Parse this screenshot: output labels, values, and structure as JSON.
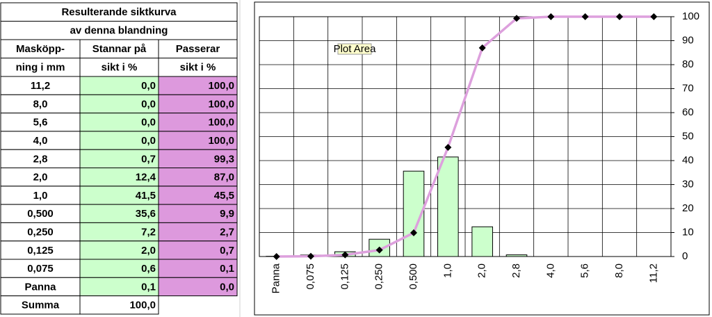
{
  "table": {
    "title": [
      "Resulterande siktkurva",
      "av denna blandning"
    ],
    "header": [
      [
        "Masköpp-",
        "Stannar på",
        "Passerar"
      ],
      [
        "ning i mm",
        "sikt i %",
        "sikt i %"
      ]
    ],
    "rows": [
      [
        "11,2",
        "0,0",
        "100,0"
      ],
      [
        "8,0",
        "0,0",
        "100,0"
      ],
      [
        "5,6",
        "0,0",
        "100,0"
      ],
      [
        "4,0",
        "0,0",
        "100,0"
      ],
      [
        "2,8",
        "0,7",
        "99,3"
      ],
      [
        "2,0",
        "12,4",
        "87,0"
      ],
      [
        "1,0",
        "41,5",
        "45,5"
      ],
      [
        "0,500",
        "35,6",
        "9,9"
      ],
      [
        "0,250",
        "7,2",
        "2,7"
      ],
      [
        "0,125",
        "2,0",
        "0,7"
      ],
      [
        "0,075",
        "0,6",
        "0,1"
      ],
      [
        "Panna",
        "0,1",
        "0,0"
      ]
    ],
    "total": [
      "Summa",
      "100,0"
    ]
  },
  "chart_data": {
    "type": "bar",
    "tooltip": "Plot Area",
    "categories": [
      "Panna",
      "0,075",
      "0,125",
      "0,250",
      "0,500",
      "1,0",
      "2,0",
      "2,8",
      "4,0",
      "5,6",
      "8,0",
      "11,2"
    ],
    "series": [
      {
        "type": "bar",
        "color": "#ccffcc",
        "values": [
          0.1,
          0.6,
          2.0,
          7.2,
          35.6,
          41.5,
          12.4,
          0.7,
          0,
          0,
          0,
          0
        ]
      },
      {
        "type": "line",
        "color": "#dda0dd",
        "marker_color": "#000000",
        "values": [
          0.0,
          0.1,
          0.7,
          2.7,
          9.9,
          45.5,
          87.0,
          99.3,
          100,
          100,
          100,
          100
        ]
      }
    ],
    "ylim": [
      0,
      100
    ],
    "yticks": [
      0,
      10,
      20,
      30,
      40,
      50,
      60,
      70,
      80,
      90,
      100
    ],
    "grid": true
  }
}
